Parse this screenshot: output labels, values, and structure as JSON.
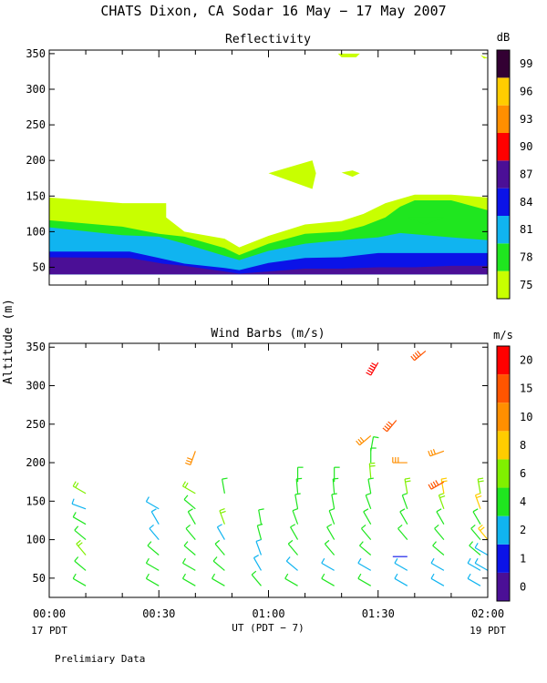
{
  "title": "CHATS Dixon, CA  Sodar  16 May − 17 May 2007",
  "preliminary": "Prelimiary Data",
  "ylabel": "Altitude (m)",
  "xaxis": {
    "label": "UT  (PDT − 7)",
    "start_note": "17 PDT",
    "end_note": "19 PDT",
    "ticks": [
      {
        "value": 0,
        "label": "00:00"
      },
      {
        "value": 30,
        "label": "00:30"
      },
      {
        "value": 60,
        "label": "01:00"
      },
      {
        "value": 90,
        "label": "01:30"
      },
      {
        "value": 120,
        "label": "02:00"
      }
    ],
    "xlim": [
      0,
      120
    ]
  },
  "yaxis": {
    "ticks": [
      50,
      100,
      150,
      200,
      250,
      300,
      350
    ],
    "tick_labels": [
      "50",
      "100",
      "150",
      "200",
      "250",
      "300",
      "350"
    ],
    "ylim": [
      25,
      355
    ]
  },
  "chart_data": [
    {
      "type": "contour",
      "title": "Reflectivity",
      "units": "dB",
      "colorbar": {
        "labels": [
          "75",
          "78",
          "81",
          "84",
          "87",
          "90",
          "93",
          "96",
          "99"
        ],
        "levels": [
          75,
          78,
          81,
          84,
          87,
          90,
          93,
          96,
          99
        ],
        "colors": [
          "#c8ff00",
          "#1fe61f",
          "#10b4f0",
          "#0b13e8",
          "#4b0f96",
          "#ff0000",
          "#ff8f00",
          "#ffcc00",
          "#330033"
        ]
      },
      "contour_levels": [
        {
          "level": 75,
          "top": [
            [
              0,
              148
            ],
            [
              20,
              140
            ],
            [
              25,
              140
            ],
            [
              32,
              140
            ],
            [
              32,
              120
            ],
            [
              37,
              100
            ],
            [
              48,
              90
            ],
            [
              52,
              78
            ],
            [
              60,
              94
            ],
            [
              70,
              110
            ],
            [
              80,
              115
            ],
            [
              86,
              125
            ],
            [
              92,
              140
            ],
            [
              100,
              152
            ],
            [
              110,
              152
            ],
            [
              120,
              148
            ]
          ],
          "bottom": 40
        },
        {
          "level": 78,
          "top": [
            [
              0,
              116
            ],
            [
              20,
              107
            ],
            [
              30,
              97
            ],
            [
              37,
              93
            ],
            [
              48,
              77
            ],
            [
              52,
              67
            ],
            [
              60,
              83
            ],
            [
              70,
              97
            ],
            [
              80,
              100
            ],
            [
              86,
              108
            ],
            [
              92,
              120
            ],
            [
              96,
              135
            ],
            [
              100,
              144
            ],
            [
              110,
              144
            ],
            [
              120,
              130
            ]
          ],
          "bottom": 40
        },
        {
          "level": 81,
          "top": [
            [
              0,
              106
            ],
            [
              20,
              95
            ],
            [
              30,
              93
            ],
            [
              37,
              83
            ],
            [
              48,
              66
            ],
            [
              52,
              60
            ],
            [
              60,
              73
            ],
            [
              70,
              83
            ],
            [
              80,
              88
            ],
            [
              90,
              92
            ],
            [
              96,
              98
            ],
            [
              110,
              92
            ],
            [
              120,
              88
            ]
          ],
          "bottom": 40
        },
        {
          "level": 84,
          "top": [
            [
              0,
              72
            ],
            [
              22,
              72
            ],
            [
              30,
              63
            ],
            [
              37,
              55
            ],
            [
              48,
              49
            ],
            [
              52,
              46
            ],
            [
              60,
              56
            ],
            [
              70,
              63
            ],
            [
              80,
              64
            ],
            [
              90,
              70
            ],
            [
              100,
              70
            ],
            [
              110,
              70
            ],
            [
              120,
              70
            ]
          ],
          "bottom": 40
        },
        {
          "level": 87,
          "top": [
            [
              0,
              64
            ],
            [
              22,
              63
            ],
            [
              31,
              55
            ],
            [
              37,
              52
            ],
            [
              48,
              44
            ],
            [
              52,
              41
            ],
            [
              60,
              44
            ],
            [
              70,
              48
            ],
            [
              80,
              48
            ],
            [
              90,
              50
            ],
            [
              100,
              50
            ],
            [
              110,
              52
            ],
            [
              120,
              52
            ]
          ],
          "bottom": 40
        }
      ],
      "islands": [
        {
          "level": 75,
          "points": [
            [
              60,
              182
            ],
            [
              72,
              200
            ],
            [
              73,
              182
            ],
            [
              72,
              160
            ]
          ]
        },
        {
          "level": 75,
          "points": [
            [
              80,
              183
            ],
            [
              83,
              186
            ],
            [
              85,
              182
            ],
            [
              83,
              177
            ]
          ]
        },
        {
          "level": 75,
          "points": [
            [
              79,
              350
            ],
            [
              85,
              350
            ],
            [
              84,
              345
            ],
            [
              80,
              345
            ]
          ]
        },
        {
          "level": 75,
          "points": [
            [
              118,
              348
            ],
            [
              120,
              344
            ],
            [
              119,
              343
            ]
          ]
        },
        {
          "level": 78,
          "points": [
            [
              98,
              120
            ],
            [
              108,
              120
            ],
            [
              103,
              110
            ]
          ]
        }
      ]
    },
    {
      "type": "wind-barbs",
      "title": "Wind Barbs (m/s)",
      "units": "m/s",
      "colorbar": {
        "labels": [
          "0",
          "1",
          "2",
          "4",
          "6",
          "8",
          "10",
          "15",
          "20"
        ],
        "levels": [
          0,
          1,
          2,
          4,
          6,
          8,
          10,
          15,
          20
        ],
        "colors": [
          "#4b0f96",
          "#0b13e8",
          "#10b4f0",
          "#1fe61f",
          "#80f000",
          "#ffcc00",
          "#ff8f00",
          "#ff5500",
          "#ff0000"
        ]
      },
      "barbs": [
        {
          "t": 10,
          "z": 40,
          "speed": 4,
          "dir": 300
        },
        {
          "t": 10,
          "z": 60,
          "speed": 5,
          "dir": 310
        },
        {
          "t": 10,
          "z": 80,
          "speed": 6,
          "dir": 320
        },
        {
          "t": 10,
          "z": 100,
          "speed": 4,
          "dir": 310
        },
        {
          "t": 10,
          "z": 120,
          "speed": 4,
          "dir": 300
        },
        {
          "t": 10,
          "z": 140,
          "speed": 2,
          "dir": 290
        },
        {
          "t": 10,
          "z": 160,
          "speed": 6,
          "dir": 300
        },
        {
          "t": 30,
          "z": 40,
          "speed": 4,
          "dir": 300
        },
        {
          "t": 30,
          "z": 60,
          "speed": 4,
          "dir": 300
        },
        {
          "t": 30,
          "z": 80,
          "speed": 4,
          "dir": 310
        },
        {
          "t": 30,
          "z": 100,
          "speed": 3,
          "dir": 320
        },
        {
          "t": 30,
          "z": 120,
          "speed": 3,
          "dir": 330
        },
        {
          "t": 30,
          "z": 140,
          "speed": 2,
          "dir": 300
        },
        {
          "t": 40,
          "z": 40,
          "speed": 4,
          "dir": 300
        },
        {
          "t": 40,
          "z": 60,
          "speed": 4,
          "dir": 300
        },
        {
          "t": 40,
          "z": 80,
          "speed": 4,
          "dir": 310
        },
        {
          "t": 40,
          "z": 100,
          "speed": 4,
          "dir": 320
        },
        {
          "t": 40,
          "z": 120,
          "speed": 4,
          "dir": 330
        },
        {
          "t": 40,
          "z": 140,
          "speed": 4,
          "dir": 310
        },
        {
          "t": 40,
          "z": 160,
          "speed": 6,
          "dir": 300
        },
        {
          "t": 40,
          "z": 215,
          "speed": 10,
          "dir": 200
        },
        {
          "t": 48,
          "z": 40,
          "speed": 4,
          "dir": 300
        },
        {
          "t": 48,
          "z": 60,
          "speed": 4,
          "dir": 310
        },
        {
          "t": 48,
          "z": 80,
          "speed": 4,
          "dir": 320
        },
        {
          "t": 48,
          "z": 100,
          "speed": 2,
          "dir": 330
        },
        {
          "t": 48,
          "z": 120,
          "speed": 6,
          "dir": 340
        },
        {
          "t": 48,
          "z": 160,
          "speed": 4,
          "dir": 350
        },
        {
          "t": 58,
          "z": 40,
          "speed": 4,
          "dir": 320
        },
        {
          "t": 58,
          "z": 60,
          "speed": 2,
          "dir": 330
        },
        {
          "t": 58,
          "z": 80,
          "speed": 2,
          "dir": 340
        },
        {
          "t": 58,
          "z": 100,
          "speed": 4,
          "dir": 345
        },
        {
          "t": 58,
          "z": 120,
          "speed": 4,
          "dir": 350
        },
        {
          "t": 68,
          "z": 40,
          "speed": 4,
          "dir": 300
        },
        {
          "t": 68,
          "z": 60,
          "speed": 2,
          "dir": 310
        },
        {
          "t": 68,
          "z": 80,
          "speed": 4,
          "dir": 320
        },
        {
          "t": 68,
          "z": 100,
          "speed": 4,
          "dir": 330
        },
        {
          "t": 68,
          "z": 120,
          "speed": 4,
          "dir": 340
        },
        {
          "t": 68,
          "z": 140,
          "speed": 4,
          "dir": 350
        },
        {
          "t": 68,
          "z": 160,
          "speed": 4,
          "dir": 355
        },
        {
          "t": 68,
          "z": 175,
          "speed": 4,
          "dir": 0
        },
        {
          "t": 78,
          "z": 40,
          "speed": 4,
          "dir": 300
        },
        {
          "t": 78,
          "z": 60,
          "speed": 2,
          "dir": 300
        },
        {
          "t": 78,
          "z": 80,
          "speed": 4,
          "dir": 320
        },
        {
          "t": 78,
          "z": 100,
          "speed": 4,
          "dir": 330
        },
        {
          "t": 78,
          "z": 120,
          "speed": 4,
          "dir": 340
        },
        {
          "t": 78,
          "z": 140,
          "speed": 4,
          "dir": 350
        },
        {
          "t": 78,
          "z": 160,
          "speed": 4,
          "dir": 355
        },
        {
          "t": 78,
          "z": 175,
          "speed": 4,
          "dir": 0
        },
        {
          "t": 88,
          "z": 40,
          "speed": 4,
          "dir": 300
        },
        {
          "t": 88,
          "z": 60,
          "speed": 2,
          "dir": 300
        },
        {
          "t": 88,
          "z": 80,
          "speed": 4,
          "dir": 310
        },
        {
          "t": 88,
          "z": 100,
          "speed": 4,
          "dir": 320
        },
        {
          "t": 88,
          "z": 120,
          "speed": 4,
          "dir": 330
        },
        {
          "t": 88,
          "z": 140,
          "speed": 4,
          "dir": 340
        },
        {
          "t": 88,
          "z": 160,
          "speed": 4,
          "dir": 350
        },
        {
          "t": 88,
          "z": 180,
          "speed": 6,
          "dir": 355
        },
        {
          "t": 88,
          "z": 200,
          "speed": 4,
          "dir": 0
        },
        {
          "t": 88,
          "z": 215,
          "speed": 4,
          "dir": 10
        },
        {
          "t": 88,
          "z": 235,
          "speed": 10,
          "dir": 230
        },
        {
          "t": 98,
          "z": 40,
          "speed": 2,
          "dir": 300
        },
        {
          "t": 98,
          "z": 60,
          "speed": 2,
          "dir": 300
        },
        {
          "t": 98,
          "z": 78,
          "speed": 1,
          "dir": 270
        },
        {
          "t": 98,
          "z": 100,
          "speed": 4,
          "dir": 320
        },
        {
          "t": 98,
          "z": 120,
          "speed": 4,
          "dir": 330
        },
        {
          "t": 98,
          "z": 140,
          "speed": 4,
          "dir": 340
        },
        {
          "t": 98,
          "z": 160,
          "speed": 6,
          "dir": 350
        },
        {
          "t": 98,
          "z": 200,
          "speed": 10,
          "dir": 270
        },
        {
          "t": 108,
          "z": 40,
          "speed": 2,
          "dir": 300
        },
        {
          "t": 108,
          "z": 60,
          "speed": 2,
          "dir": 300
        },
        {
          "t": 108,
          "z": 80,
          "speed": 4,
          "dir": 310
        },
        {
          "t": 108,
          "z": 100,
          "speed": 4,
          "dir": 320
        },
        {
          "t": 108,
          "z": 120,
          "speed": 4,
          "dir": 330
        },
        {
          "t": 108,
          "z": 140,
          "speed": 6,
          "dir": 340
        },
        {
          "t": 108,
          "z": 160,
          "speed": 8,
          "dir": 350
        },
        {
          "t": 108,
          "z": 175,
          "speed": 15,
          "dir": 240
        },
        {
          "t": 108,
          "z": 215,
          "speed": 10,
          "dir": 250
        },
        {
          "t": 118,
          "z": 40,
          "speed": 2,
          "dir": 300
        },
        {
          "t": 118,
          "z": 60,
          "speed": 2,
          "dir": 300
        },
        {
          "t": 118,
          "z": 80,
          "speed": 4,
          "dir": 310
        },
        {
          "t": 118,
          "z": 100,
          "speed": 4,
          "dir": 320
        },
        {
          "t": 118,
          "z": 120,
          "speed": 4,
          "dir": 330
        },
        {
          "t": 118,
          "z": 140,
          "speed": 8,
          "dir": 340
        },
        {
          "t": 118,
          "z": 160,
          "speed": 6,
          "dir": 350
        },
        {
          "t": 120,
          "z": 60,
          "speed": 2,
          "dir": 300
        },
        {
          "t": 120,
          "z": 80,
          "speed": 2,
          "dir": 300
        },
        {
          "t": 120,
          "z": 100,
          "speed": 8,
          "dir": 320
        },
        {
          "t": 95,
          "z": 255,
          "speed": 15,
          "dir": 220
        },
        {
          "t": 90,
          "z": 330,
          "speed": 20,
          "dir": 210
        },
        {
          "t": 103,
          "z": 345,
          "speed": 15,
          "dir": 230
        }
      ]
    }
  ]
}
